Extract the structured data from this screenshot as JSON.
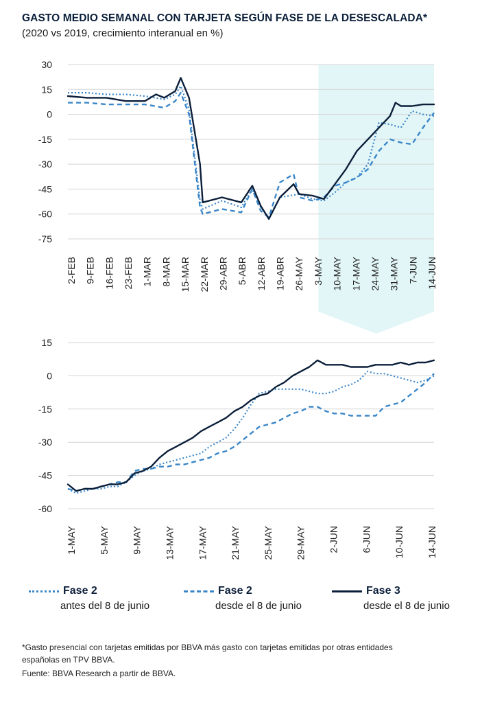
{
  "title": "GASTO MEDIO SEMANAL CON TARJETA SEGÚN FASE DE LA DESESCALADA*",
  "subtitle": "(2020 vs 2019, crecimiento interanual en %)",
  "colors": {
    "fase2_antes": "#3a86c8",
    "fase2_desde": "#3a86c8",
    "fase3": "#0b1f3a",
    "highlight": "#e3f6f7"
  },
  "legend": [
    {
      "name": "Fase 2",
      "desc": "antes del 8 de junio",
      "style": "dotted",
      "color": "#3a86c8"
    },
    {
      "name": "Fase 2",
      "desc": "desde el 8 de junio",
      "style": "dashed",
      "color": "#3a86c8"
    },
    {
      "name": "Fase 3",
      "desc": "desde el 8 de junio",
      "style": "solid",
      "color": "#0b1f3a"
    }
  ],
  "footnote": [
    "*Gasto presencial con tarjetas emitidas por BBVA más gasto con tarjetas emitidas por otras entidades",
    "españolas en TPV BBVA.",
    "Fuente: BBVA Research a partir de BBVA."
  ],
  "chart_data": [
    {
      "type": "line",
      "x_range": [
        "2020-02-02",
        "2020-06-14"
      ],
      "x_ticks": [
        "2-FEB",
        "9-FEB",
        "16-FEB",
        "23-FEB",
        "1-MAR",
        "8-MAR",
        "15-MAR",
        "22-MAR",
        "29-ABR",
        "5-ABR",
        "12-ABR",
        "19-ABR",
        "26-MAY",
        "3-MAY",
        "10-MAY",
        "17-MAY",
        "24-MAY",
        "31-MAY",
        "7-JUN",
        "14-JUN"
      ],
      "y_ticks": [
        30,
        15,
        0,
        -15,
        -30,
        -45,
        -60,
        -75
      ],
      "ylim": [
        -75,
        30
      ],
      "highlight_range": [
        "2020-05-03",
        "2020-06-14"
      ],
      "series": [
        {
          "key": "fase2_antes",
          "points": [
            [
              "2020-02-02",
              13
            ],
            [
              "2020-02-09",
              13
            ],
            [
              "2020-02-16",
              12
            ],
            [
              "2020-02-23",
              12
            ],
            [
              "2020-03-01",
              11
            ],
            [
              "2020-03-08",
              9
            ],
            [
              "2020-03-12",
              12
            ],
            [
              "2020-03-14",
              17
            ],
            [
              "2020-03-17",
              3
            ],
            [
              "2020-03-21",
              -52
            ],
            [
              "2020-03-22",
              -57
            ],
            [
              "2020-03-29",
              -52
            ],
            [
              "2020-04-05",
              -56
            ],
            [
              "2020-04-09",
              -45
            ],
            [
              "2020-04-12",
              -56
            ],
            [
              "2020-04-15",
              -62
            ],
            [
              "2020-04-19",
              -50
            ],
            [
              "2020-04-26",
              -48
            ],
            [
              "2020-05-01",
              -51
            ],
            [
              "2020-05-05",
              -52
            ],
            [
              "2020-05-09",
              -47
            ],
            [
              "2020-05-13",
              -41
            ],
            [
              "2020-05-17",
              -38
            ],
            [
              "2020-05-21",
              -30
            ],
            [
              "2020-05-25",
              -5
            ],
            [
              "2020-05-29",
              -6
            ],
            [
              "2020-06-02",
              -8
            ],
            [
              "2020-06-06",
              2
            ],
            [
              "2020-06-10",
              0
            ],
            [
              "2020-06-14",
              -1
            ]
          ]
        },
        {
          "key": "fase2_desde",
          "points": [
            [
              "2020-02-02",
              7
            ],
            [
              "2020-02-09",
              7
            ],
            [
              "2020-02-16",
              6
            ],
            [
              "2020-02-23",
              6
            ],
            [
              "2020-03-01",
              6
            ],
            [
              "2020-03-08",
              4
            ],
            [
              "2020-03-12",
              8
            ],
            [
              "2020-03-14",
              13
            ],
            [
              "2020-03-17",
              0
            ],
            [
              "2020-03-21",
              -56
            ],
            [
              "2020-03-22",
              -60
            ],
            [
              "2020-03-29",
              -57
            ],
            [
              "2020-04-05",
              -59
            ],
            [
              "2020-04-09",
              -45
            ],
            [
              "2020-04-12",
              -58
            ],
            [
              "2020-04-15",
              -62
            ],
            [
              "2020-04-19",
              -41
            ],
            [
              "2020-04-24",
              -36
            ],
            [
              "2020-04-26",
              -50
            ],
            [
              "2020-05-01",
              -52
            ],
            [
              "2020-05-05",
              -50
            ],
            [
              "2020-05-09",
              -43
            ],
            [
              "2020-05-13",
              -41
            ],
            [
              "2020-05-17",
              -38
            ],
            [
              "2020-05-21",
              -33
            ],
            [
              "2020-05-25",
              -22
            ],
            [
              "2020-05-29",
              -15
            ],
            [
              "2020-06-02",
              -17
            ],
            [
              "2020-06-06",
              -18
            ],
            [
              "2020-06-10",
              -8
            ],
            [
              "2020-06-14",
              1
            ]
          ]
        },
        {
          "key": "fase3",
          "points": [
            [
              "2020-02-02",
              11
            ],
            [
              "2020-02-09",
              10
            ],
            [
              "2020-02-16",
              10
            ],
            [
              "2020-02-23",
              8
            ],
            [
              "2020-03-01",
              8
            ],
            [
              "2020-03-05",
              12
            ],
            [
              "2020-03-08",
              10
            ],
            [
              "2020-03-12",
              14
            ],
            [
              "2020-03-14",
              22
            ],
            [
              "2020-03-17",
              10
            ],
            [
              "2020-03-21",
              -30
            ],
            [
              "2020-03-22",
              -53
            ],
            [
              "2020-03-29",
              -50
            ],
            [
              "2020-04-05",
              -53
            ],
            [
              "2020-04-09",
              -43
            ],
            [
              "2020-04-12",
              -55
            ],
            [
              "2020-04-15",
              -63
            ],
            [
              "2020-04-19",
              -50
            ],
            [
              "2020-04-24",
              -42
            ],
            [
              "2020-04-26",
              -48
            ],
            [
              "2020-05-01",
              -49
            ],
            [
              "2020-05-05",
              -51
            ],
            [
              "2020-05-09",
              -42
            ],
            [
              "2020-05-13",
              -33
            ],
            [
              "2020-05-17",
              -22
            ],
            [
              "2020-05-21",
              -15
            ],
            [
              "2020-05-25",
              -8
            ],
            [
              "2020-05-29",
              -1
            ],
            [
              "2020-05-31",
              7
            ],
            [
              "2020-06-02",
              5
            ],
            [
              "2020-06-06",
              5
            ],
            [
              "2020-06-10",
              6
            ],
            [
              "2020-06-14",
              6
            ]
          ]
        }
      ]
    },
    {
      "type": "line",
      "x_range": [
        "2020-05-01",
        "2020-06-14"
      ],
      "x_ticks": [
        "1-MAY",
        "5-MAY",
        "9-MAY",
        "13-MAY",
        "17-MAY",
        "21-MAY",
        "25-MAY",
        "29-MAY",
        "2-JUN",
        "6-JUN",
        "10-JUN",
        "14-JUN"
      ],
      "y_ticks": [
        15,
        0,
        -15,
        -30,
        -45,
        -60
      ],
      "ylim": [
        -60,
        15
      ],
      "series": [
        {
          "key": "fase2_antes",
          "points": [
            [
              "2020-05-01",
              -51
            ],
            [
              "2020-05-02",
              -53
            ],
            [
              "2020-05-03",
              -52
            ],
            [
              "2020-05-04",
              -51
            ],
            [
              "2020-05-05",
              -51
            ],
            [
              "2020-05-06",
              -50
            ],
            [
              "2020-05-07",
              -50
            ],
            [
              "2020-05-08",
              -48
            ],
            [
              "2020-05-09",
              -45
            ],
            [
              "2020-05-10",
              -43
            ],
            [
              "2020-05-11",
              -42
            ],
            [
              "2020-05-12",
              -40
            ],
            [
              "2020-05-13",
              -39
            ],
            [
              "2020-05-14",
              -38
            ],
            [
              "2020-05-15",
              -37
            ],
            [
              "2020-05-16",
              -36
            ],
            [
              "2020-05-17",
              -35
            ],
            [
              "2020-05-18",
              -32
            ],
            [
              "2020-05-19",
              -30
            ],
            [
              "2020-05-20",
              -28
            ],
            [
              "2020-05-21",
              -24
            ],
            [
              "2020-05-22",
              -19
            ],
            [
              "2020-05-23",
              -13
            ],
            [
              "2020-05-24",
              -8
            ],
            [
              "2020-05-25",
              -7
            ],
            [
              "2020-05-26",
              -6
            ],
            [
              "2020-05-27",
              -6
            ],
            [
              "2020-05-28",
              -6
            ],
            [
              "2020-05-29",
              -6
            ],
            [
              "2020-05-30",
              -7
            ],
            [
              "2020-05-31",
              -8
            ],
            [
              "2020-06-01",
              -8
            ],
            [
              "2020-06-02",
              -7
            ],
            [
              "2020-06-03",
              -5
            ],
            [
              "2020-06-04",
              -4
            ],
            [
              "2020-06-05",
              -2
            ],
            [
              "2020-06-06",
              2
            ],
            [
              "2020-06-07",
              1
            ],
            [
              "2020-06-08",
              1
            ],
            [
              "2020-06-09",
              0
            ],
            [
              "2020-06-10",
              -1
            ],
            [
              "2020-06-11",
              -2
            ],
            [
              "2020-06-12",
              -3
            ],
            [
              "2020-06-13",
              -2
            ],
            [
              "2020-06-14",
              0
            ]
          ]
        },
        {
          "key": "fase2_desde",
          "points": [
            [
              "2020-05-01",
              -51
            ],
            [
              "2020-05-02",
              -52
            ],
            [
              "2020-05-03",
              -51
            ],
            [
              "2020-05-04",
              -51
            ],
            [
              "2020-05-05",
              -50
            ],
            [
              "2020-05-06",
              -49
            ],
            [
              "2020-05-07",
              -48
            ],
            [
              "2020-05-08",
              -48
            ],
            [
              "2020-05-09",
              -43
            ],
            [
              "2020-05-10",
              -42
            ],
            [
              "2020-05-11",
              -42
            ],
            [
              "2020-05-12",
              -41
            ],
            [
              "2020-05-13",
              -41
            ],
            [
              "2020-05-14",
              -40
            ],
            [
              "2020-05-15",
              -40
            ],
            [
              "2020-05-16",
              -39
            ],
            [
              "2020-05-17",
              -38
            ],
            [
              "2020-05-18",
              -37
            ],
            [
              "2020-05-19",
              -35
            ],
            [
              "2020-05-20",
              -34
            ],
            [
              "2020-05-21",
              -32
            ],
            [
              "2020-05-22",
              -29
            ],
            [
              "2020-05-23",
              -26
            ],
            [
              "2020-05-24",
              -23
            ],
            [
              "2020-05-25",
              -22
            ],
            [
              "2020-05-26",
              -21
            ],
            [
              "2020-05-27",
              -19
            ],
            [
              "2020-05-28",
              -17
            ],
            [
              "2020-05-29",
              -16
            ],
            [
              "2020-05-30",
              -14
            ],
            [
              "2020-05-31",
              -14
            ],
            [
              "2020-06-01",
              -16
            ],
            [
              "2020-06-02",
              -17
            ],
            [
              "2020-06-03",
              -17
            ],
            [
              "2020-06-04",
              -18
            ],
            [
              "2020-06-05",
              -18
            ],
            [
              "2020-06-06",
              -18
            ],
            [
              "2020-06-07",
              -18
            ],
            [
              "2020-06-08",
              -14
            ],
            [
              "2020-06-09",
              -13
            ],
            [
              "2020-06-10",
              -12
            ],
            [
              "2020-06-11",
              -9
            ],
            [
              "2020-06-12",
              -6
            ],
            [
              "2020-06-13",
              -3
            ],
            [
              "2020-06-14",
              1
            ]
          ]
        },
        {
          "key": "fase3",
          "points": [
            [
              "2020-05-01",
              -49
            ],
            [
              "2020-05-02",
              -52
            ],
            [
              "2020-05-03",
              -51
            ],
            [
              "2020-05-04",
              -51
            ],
            [
              "2020-05-05",
              -50
            ],
            [
              "2020-05-06",
              -49
            ],
            [
              "2020-05-07",
              -49
            ],
            [
              "2020-05-08",
              -48
            ],
            [
              "2020-05-09",
              -44
            ],
            [
              "2020-05-10",
              -43
            ],
            [
              "2020-05-11",
              -41
            ],
            [
              "2020-05-12",
              -37
            ],
            [
              "2020-05-13",
              -34
            ],
            [
              "2020-05-14",
              -32
            ],
            [
              "2020-05-15",
              -30
            ],
            [
              "2020-05-16",
              -28
            ],
            [
              "2020-05-17",
              -25
            ],
            [
              "2020-05-18",
              -23
            ],
            [
              "2020-05-19",
              -21
            ],
            [
              "2020-05-20",
              -19
            ],
            [
              "2020-05-21",
              -16
            ],
            [
              "2020-05-22",
              -14
            ],
            [
              "2020-05-23",
              -11
            ],
            [
              "2020-05-24",
              -9
            ],
            [
              "2020-05-25",
              -8
            ],
            [
              "2020-05-26",
              -5
            ],
            [
              "2020-05-27",
              -3
            ],
            [
              "2020-05-28",
              0
            ],
            [
              "2020-05-29",
              2
            ],
            [
              "2020-05-30",
              4
            ],
            [
              "2020-05-31",
              7
            ],
            [
              "2020-06-01",
              5
            ],
            [
              "2020-06-02",
              5
            ],
            [
              "2020-06-03",
              5
            ],
            [
              "2020-06-04",
              4
            ],
            [
              "2020-06-05",
              4
            ],
            [
              "2020-06-06",
              4
            ],
            [
              "2020-06-07",
              5
            ],
            [
              "2020-06-08",
              5
            ],
            [
              "2020-06-09",
              5
            ],
            [
              "2020-06-10",
              6
            ],
            [
              "2020-06-11",
              5
            ],
            [
              "2020-06-12",
              6
            ],
            [
              "2020-06-13",
              6
            ],
            [
              "2020-06-14",
              7
            ]
          ]
        }
      ]
    }
  ]
}
